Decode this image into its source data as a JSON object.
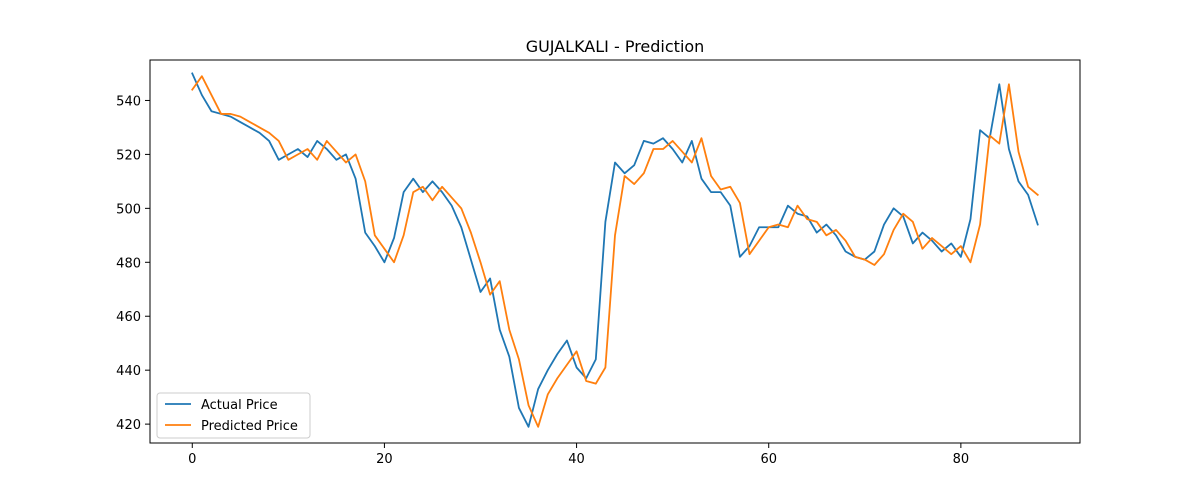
{
  "chart_data": {
    "type": "line",
    "title": "GUJALKALI - Prediction",
    "xlabel": "",
    "ylabel": "",
    "xlim": [
      -4.4,
      92.4
    ],
    "ylim": [
      413,
      555
    ],
    "xticks": [
      0,
      20,
      40,
      60,
      80
    ],
    "yticks": [
      420,
      440,
      460,
      480,
      500,
      520,
      540
    ],
    "grid": false,
    "legend": "lower-left",
    "series": [
      {
        "name": "Actual Price",
        "color": "#1f77b4",
        "values": [
          550,
          542,
          536,
          535,
          534,
          532,
          530,
          528,
          525,
          518,
          520,
          522,
          519,
          525,
          522,
          518,
          520,
          511,
          491,
          486,
          480,
          489,
          506,
          511,
          506,
          510,
          506,
          501,
          493,
          481,
          469,
          474,
          455,
          445,
          426,
          419,
          433,
          440,
          446,
          451,
          441,
          437,
          444,
          495,
          517,
          513,
          516,
          525,
          524,
          526,
          522,
          517,
          525,
          511,
          506,
          506,
          501,
          482,
          486,
          493,
          493,
          493,
          501,
          498,
          497,
          491,
          494,
          490,
          484,
          482,
          481,
          484,
          494,
          500,
          497,
          487,
          491,
          488,
          484,
          487,
          482,
          496,
          529,
          526,
          546,
          522,
          510,
          505,
          494
        ]
      },
      {
        "name": "Predicted Price",
        "color": "#ff7f0e",
        "values": [
          544,
          549,
          542,
          535,
          535,
          534,
          532,
          530,
          528,
          525,
          518,
          520,
          522,
          518,
          525,
          521,
          517,
          520,
          510,
          490,
          485,
          480,
          490,
          506,
          508,
          503,
          508,
          504,
          500,
          491,
          480,
          468,
          473,
          455,
          444,
          427,
          419,
          431,
          437,
          442,
          447,
          436,
          435,
          441,
          490,
          512,
          509,
          513,
          522,
          522,
          525,
          521,
          517,
          526,
          512,
          507,
          508,
          502,
          483,
          488,
          493,
          494,
          493,
          501,
          496,
          495,
          490,
          492,
          488,
          482,
          481,
          479,
          483,
          492,
          498,
          495,
          485,
          489,
          486,
          483,
          486,
          480,
          494,
          527,
          524,
          546,
          521,
          508,
          505
        ]
      }
    ]
  }
}
